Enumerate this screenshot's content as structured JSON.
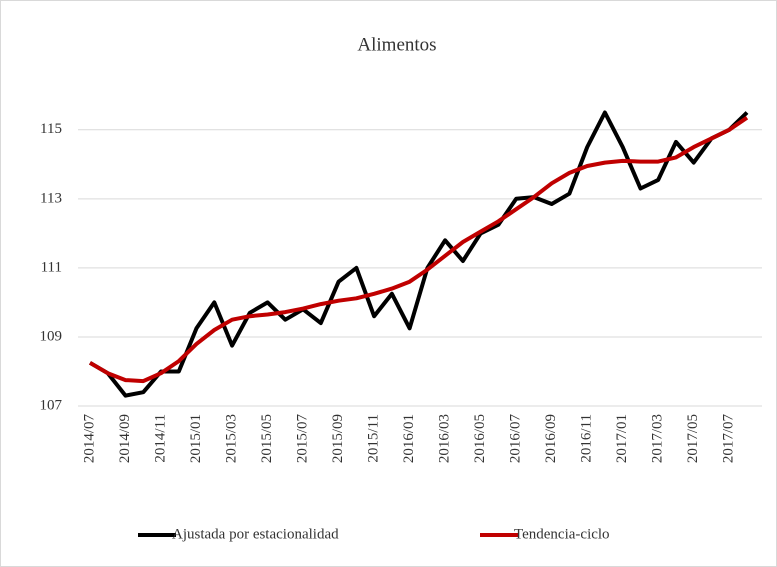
{
  "chart_data": {
    "type": "line",
    "title": "Alimentos",
    "categories": [
      "2014/07",
      null,
      "2014/09",
      null,
      "2014/11",
      null,
      "2015/01",
      null,
      "2015/03",
      null,
      "2015/05",
      null,
      "2015/07",
      null,
      "2015/09",
      null,
      "2015/11",
      null,
      "2016/01",
      null,
      "2016/03",
      null,
      "2016/05",
      null,
      "2016/07",
      null,
      "2016/09",
      null,
      "2016/11",
      null,
      "2017/01",
      null,
      "2017/03",
      null,
      "2017/05",
      null,
      "2017/07",
      null
    ],
    "series": [
      {
        "name": "Ajustada por estacionalidad",
        "color": "#000000",
        "values": [
          108.25,
          107.95,
          107.3,
          107.4,
          108.0,
          108.0,
          109.25,
          110.0,
          108.75,
          109.7,
          110.0,
          109.5,
          109.8,
          109.4,
          110.6,
          111.0,
          109.6,
          110.25,
          109.25,
          111.0,
          111.8,
          111.2,
          112.0,
          112.25,
          113.0,
          113.05,
          112.85,
          113.15,
          114.5,
          115.5,
          114.5,
          113.3,
          113.55,
          114.65,
          114.05,
          114.75,
          115.0,
          115.5
        ]
      },
      {
        "name": "Tendencia-ciclo",
        "color": "#c00000",
        "values": [
          108.25,
          107.95,
          107.75,
          107.72,
          107.95,
          108.3,
          108.8,
          109.2,
          109.5,
          109.6,
          109.65,
          109.72,
          109.82,
          109.95,
          110.05,
          110.12,
          110.25,
          110.4,
          110.6,
          110.95,
          111.35,
          111.75,
          112.05,
          112.35,
          112.7,
          113.05,
          113.45,
          113.75,
          113.95,
          114.05,
          114.1,
          114.08,
          114.08,
          114.2,
          114.5,
          114.75,
          115.0,
          115.35
        ]
      }
    ],
    "ylim": [
      107,
      116.5
    ],
    "yticks": [
      107,
      109,
      111,
      113,
      115
    ],
    "grid": true,
    "legend": "bottom"
  }
}
